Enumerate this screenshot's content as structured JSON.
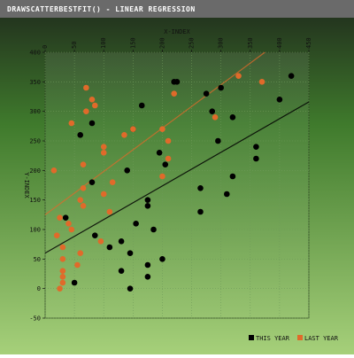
{
  "window": {
    "title": "DRAWSCATTERBESTFIT() - LINEAR REGRESSION"
  },
  "colors": {
    "background_top": "#1f2a1c",
    "background_mid": "#3f7a2c",
    "background_bottom": "#a6d07a",
    "titlebar": "#6a6a6a",
    "this_year": "#000000",
    "last_year": "#e06a2a",
    "grid": "#6f9a5a"
  },
  "chart_data": {
    "type": "scatter",
    "title": "DRAWSCATTERBESTFIT() - LINEAR REGRESSION",
    "xlabel": "X-INDEX",
    "ylabel": "Y-INDEX",
    "xlim": [
      0,
      450
    ],
    "ylim": [
      -50,
      400
    ],
    "x_ticks": [
      0,
      50,
      100,
      150,
      200,
      250,
      300,
      350,
      400,
      450
    ],
    "y_ticks": [
      400,
      350,
      300,
      250,
      200,
      150,
      100,
      50,
      0,
      -50
    ],
    "grid": true,
    "legend_position": "bottom-right",
    "series": [
      {
        "name": "THIS YEAR",
        "color": "#000000",
        "points": [
          [
            35,
            120
          ],
          [
            60,
            260
          ],
          [
            80,
            180
          ],
          [
            80,
            280
          ],
          [
            85,
            90
          ],
          [
            110,
            70
          ],
          [
            130,
            80
          ],
          [
            130,
            30
          ],
          [
            145,
            60
          ],
          [
            145,
            0
          ],
          [
            155,
            110
          ],
          [
            165,
            310
          ],
          [
            175,
            150
          ],
          [
            175,
            140
          ],
          [
            175,
            40
          ],
          [
            175,
            20
          ],
          [
            185,
            100
          ],
          [
            195,
            230
          ],
          [
            200,
            50
          ],
          [
            205,
            210
          ],
          [
            220,
            350
          ],
          [
            225,
            350
          ],
          [
            265,
            170
          ],
          [
            265,
            130
          ],
          [
            275,
            330
          ],
          [
            285,
            300
          ],
          [
            295,
            250
          ],
          [
            300,
            340
          ],
          [
            310,
            160
          ],
          [
            320,
            290
          ],
          [
            320,
            190
          ],
          [
            360,
            240
          ],
          [
            360,
            220
          ],
          [
            400,
            320
          ],
          [
            420,
            360
          ],
          [
            50,
            10
          ],
          [
            140,
            200
          ],
          [
            150,
            270
          ]
        ],
        "fit": {
          "x": [
            0,
            450
          ],
          "y": [
            60,
            316
          ]
        }
      },
      {
        "name": "LAST YEAR",
        "color": "#e06a2a",
        "points": [
          [
            15,
            200
          ],
          [
            20,
            90
          ],
          [
            25,
            120
          ],
          [
            30,
            70
          ],
          [
            30,
            50
          ],
          [
            30,
            30
          ],
          [
            30,
            20
          ],
          [
            30,
            10
          ],
          [
            25,
            0
          ],
          [
            40,
            110
          ],
          [
            45,
            100
          ],
          [
            45,
            280
          ],
          [
            55,
            40
          ],
          [
            60,
            60
          ],
          [
            60,
            150
          ],
          [
            65,
            210
          ],
          [
            65,
            170
          ],
          [
            65,
            140
          ],
          [
            70,
            340
          ],
          [
            70,
            300
          ],
          [
            80,
            320
          ],
          [
            85,
            310
          ],
          [
            95,
            80
          ],
          [
            100,
            240
          ],
          [
            100,
            230
          ],
          [
            100,
            160
          ],
          [
            110,
            130
          ],
          [
            115,
            180
          ],
          [
            135,
            260
          ],
          [
            150,
            270
          ],
          [
            200,
            270
          ],
          [
            200,
            190
          ],
          [
            210,
            250
          ],
          [
            210,
            220
          ],
          [
            220,
            330
          ],
          [
            290,
            290
          ],
          [
            330,
            360
          ],
          [
            370,
            350
          ]
        ],
        "fit": {
          "x": [
            0,
            375
          ],
          "y": [
            125,
            400
          ]
        }
      }
    ]
  }
}
